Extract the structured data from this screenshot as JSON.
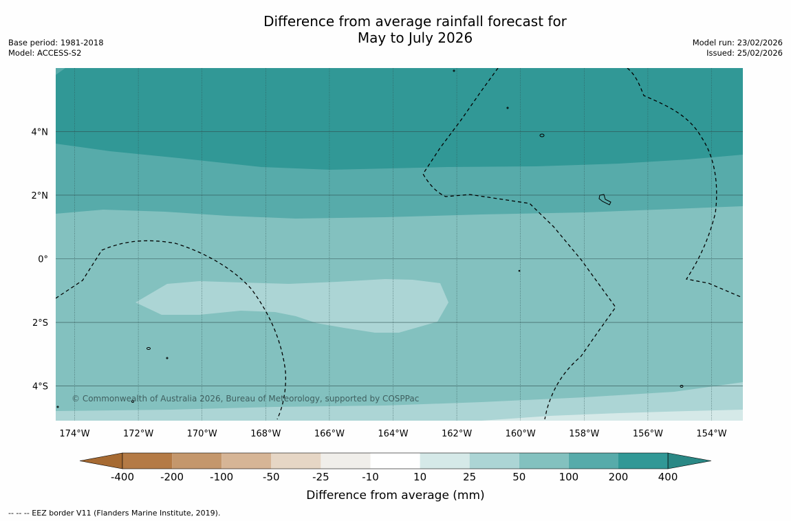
{
  "title": {
    "line1": "Difference from average rainfall forecast for",
    "line2": "May to July 2026"
  },
  "meta": {
    "base_period": "Base period: 1981-2018",
    "model": "Model: ACCESS-S2",
    "model_run": "Model run: 23/02/2026",
    "issued": "Issued: 25/02/2026"
  },
  "axes": {
    "lon_ticks": [
      {
        "label": "174°W",
        "lon": -174
      },
      {
        "label": "172°W",
        "lon": -172
      },
      {
        "label": "170°W",
        "lon": -170
      },
      {
        "label": "168°W",
        "lon": -168
      },
      {
        "label": "166°W",
        "lon": -166
      },
      {
        "label": "164°W",
        "lon": -164
      },
      {
        "label": "162°W",
        "lon": -162
      },
      {
        "label": "160°W",
        "lon": -160
      },
      {
        "label": "158°W",
        "lon": -158
      },
      {
        "label": "156°W",
        "lon": -156
      },
      {
        "label": "154°W",
        "lon": -154
      }
    ],
    "lat_ticks": [
      {
        "label": "4°N",
        "lat": 4
      },
      {
        "label": "2°N",
        "lat": 2
      },
      {
        "label": "0°",
        "lat": 0
      },
      {
        "label": "2°S",
        "lat": -2
      },
      {
        "label": "4°S",
        "lat": -4
      }
    ]
  },
  "credit": "© Commonwealth of Australia 2026, Bureau of Meteorology, supported by COSPPac",
  "colorbar": {
    "title": "Difference from average (mm)",
    "labels": [
      "-400",
      "-200",
      "-100",
      "-50",
      "-25",
      "-10",
      "10",
      "25",
      "50",
      "100",
      "200",
      "400"
    ],
    "colors": [
      "#a66a32",
      "#b47a45",
      "#c4976c",
      "#d6b596",
      "#e6d6c5",
      "#f0eeea",
      "#ffffff",
      "#d5e9e8",
      "#acd5d5",
      "#83c1bf",
      "#57abaa",
      "#319896",
      "#2a8885"
    ]
  },
  "footer": "--  --  -- EEZ border V11 (Flanders Marine Institute, 2019)."
}
